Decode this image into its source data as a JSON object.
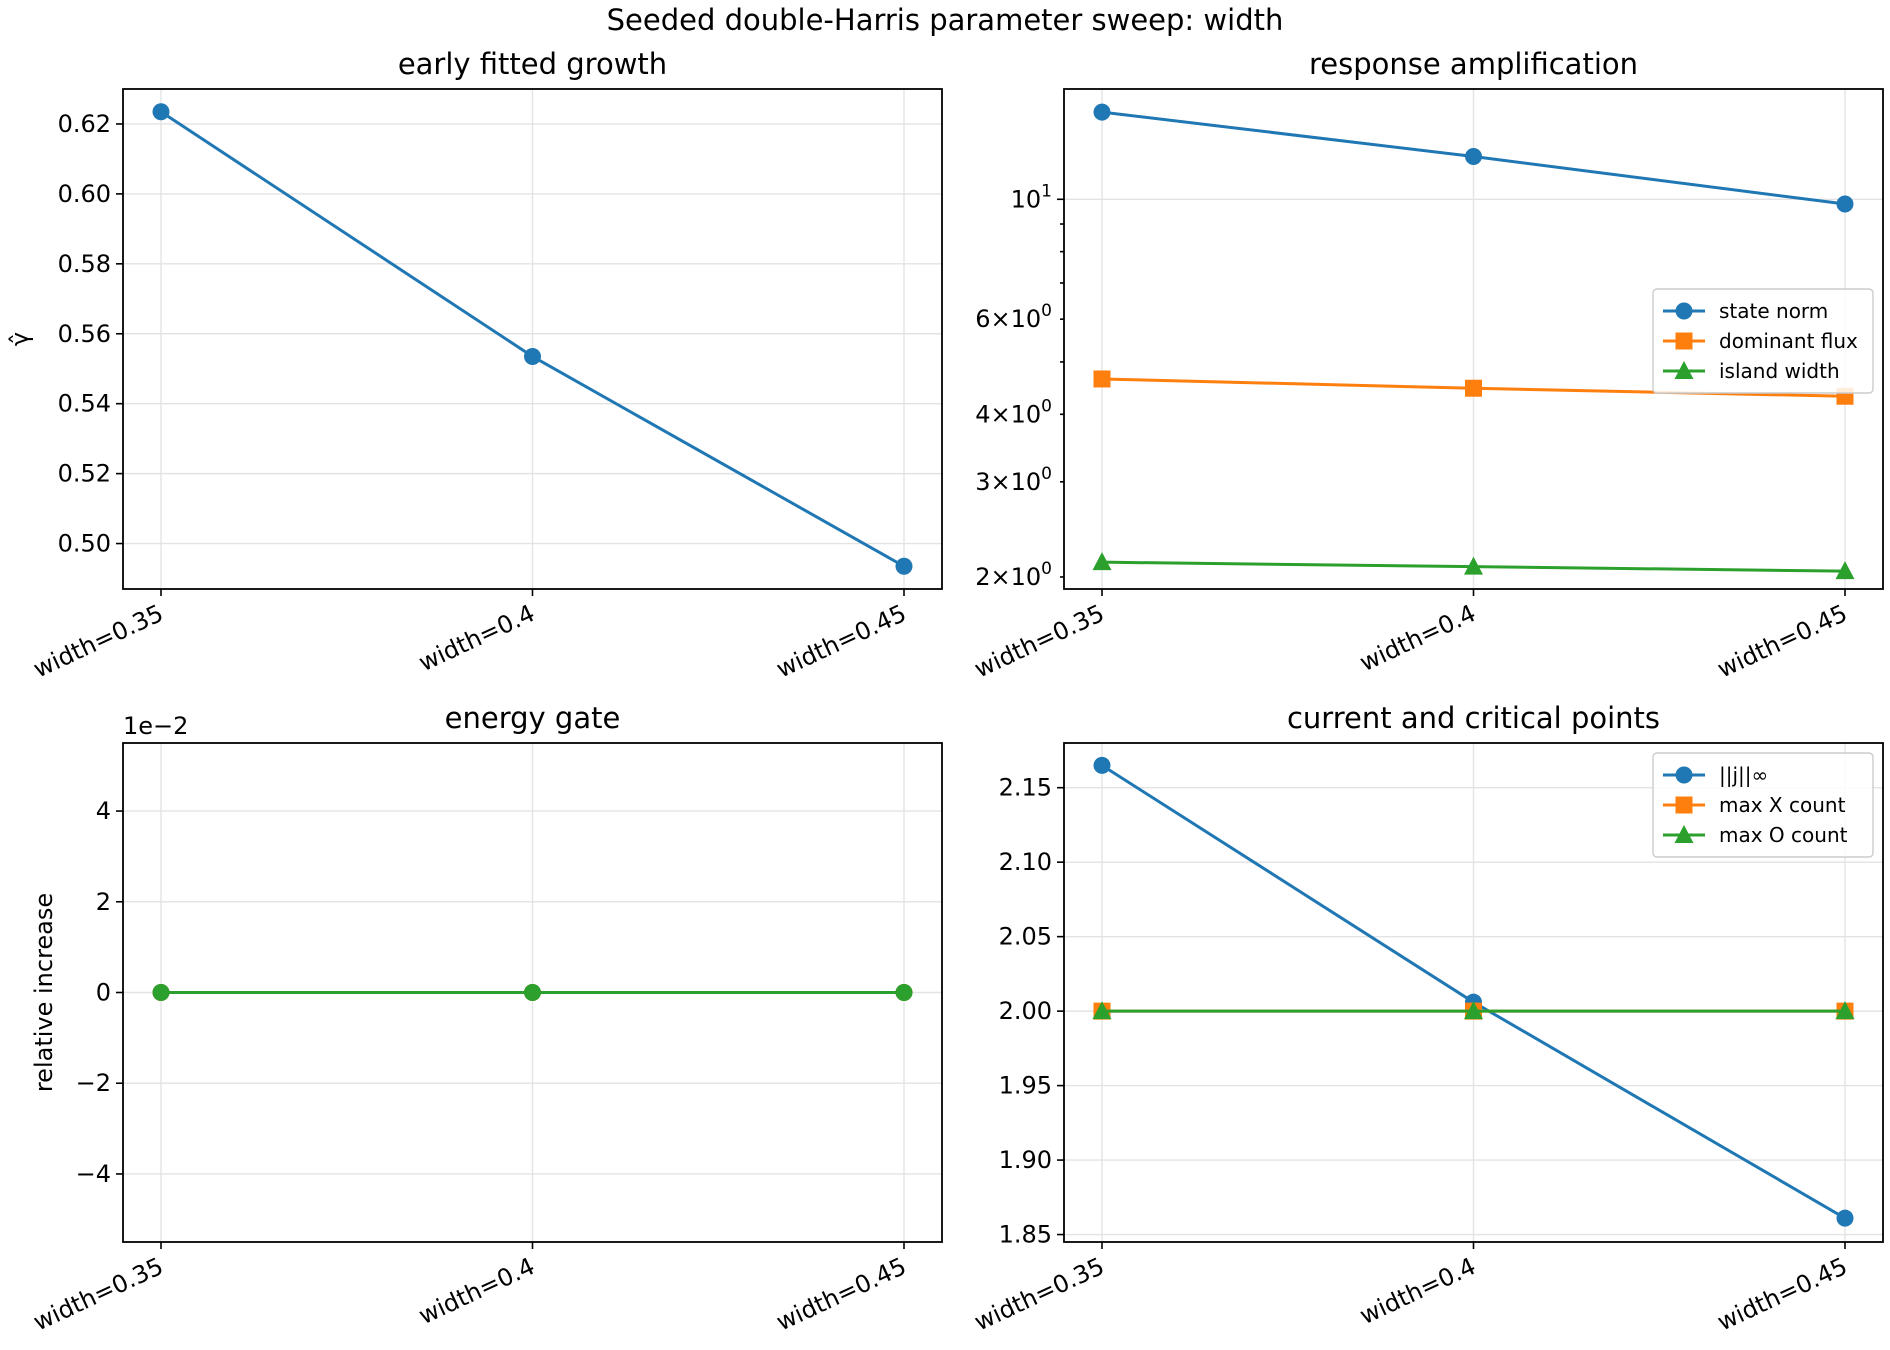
{
  "figure_title": "Seeded double-Harris parameter sweep: width",
  "colors": {
    "blue": "#1f77b4",
    "orange": "#ff7f0e",
    "green": "#2ca02c"
  },
  "chart_data": [
    {
      "id": "growth",
      "type": "line",
      "title": "early fitted growth",
      "ylabel": "γ̂",
      "xlabel": "",
      "categories": [
        "width=0.35",
        "width=0.4",
        "width=0.45"
      ],
      "ylim": [
        0.487,
        0.63
      ],
      "yticks": [
        0.5,
        0.52,
        0.54,
        0.56,
        0.58,
        0.6,
        0.62
      ],
      "ytick_labels": [
        "0.50",
        "0.52",
        "0.54",
        "0.56",
        "0.58",
        "0.60",
        "0.62"
      ],
      "grid": true,
      "series": [
        {
          "name": "",
          "color": "#1f77b4",
          "marker": "circle",
          "values": [
            0.6235,
            0.5535,
            0.4935
          ]
        }
      ]
    },
    {
      "id": "amplification",
      "type": "line",
      "title": "response amplification",
      "xlabel": "",
      "ylabel": "",
      "yscale": "log",
      "categories": [
        "width=0.35",
        "width=0.4",
        "width=0.45"
      ],
      "ylim": [
        1.9,
        16.0
      ],
      "major_ticks": [
        {
          "value": 10,
          "base": "10",
          "exp": "1"
        }
      ],
      "minor_ticks": [
        {
          "value": 2,
          "mant": "2",
          "base": "10",
          "exp": "0"
        },
        {
          "value": 3,
          "mant": "3",
          "base": "10",
          "exp": "0"
        },
        {
          "value": 4,
          "mant": "4",
          "base": "10",
          "exp": "0"
        },
        {
          "value": 6,
          "mant": "6",
          "base": "10",
          "exp": "0"
        }
      ],
      "unlabeled_minor_ticks": [
        5,
        7,
        8,
        9
      ],
      "grid": true,
      "legend": "right",
      "series": [
        {
          "name": "state norm",
          "color": "#1f77b4",
          "marker": "circle",
          "values": [
            14.5,
            12.0,
            9.8
          ]
        },
        {
          "name": "dominant flux",
          "color": "#ff7f0e",
          "marker": "square",
          "values": [
            4.65,
            4.47,
            4.32
          ]
        },
        {
          "name": "island width",
          "color": "#2ca02c",
          "marker": "triangle",
          "values": [
            2.13,
            2.09,
            2.05
          ]
        }
      ]
    },
    {
      "id": "energy",
      "type": "line",
      "title": "energy gate",
      "ylabel": "relative increase",
      "xlabel": "",
      "offset_label": "1e−2",
      "categories": [
        "width=0.35",
        "width=0.4",
        "width=0.45"
      ],
      "ylim": [
        -5.5,
        5.5
      ],
      "yticks": [
        -4,
        -2,
        0,
        2,
        4
      ],
      "ytick_labels": [
        "−4",
        "−2",
        "0",
        "2",
        "4"
      ],
      "grid": true,
      "series": [
        {
          "name": "",
          "color": "#1f77b4",
          "marker": "circle",
          "values": [
            0,
            0,
            0
          ]
        },
        {
          "name": "",
          "color": "#ff7f0e",
          "marker": "circle",
          "values": [
            0,
            0,
            0
          ]
        },
        {
          "name": "",
          "color": "#2ca02c",
          "marker": "circle",
          "values": [
            0,
            0,
            0
          ]
        }
      ]
    },
    {
      "id": "critical",
      "type": "line",
      "title": "current and critical points",
      "xlabel": "",
      "ylabel": "",
      "categories": [
        "width=0.35",
        "width=0.4",
        "width=0.45"
      ],
      "ylim": [
        1.845,
        2.18
      ],
      "yticks": [
        1.85,
        1.9,
        1.95,
        2.0,
        2.05,
        2.1,
        2.15
      ],
      "ytick_labels": [
        "1.85",
        "1.90",
        "1.95",
        "2.00",
        "2.05",
        "2.10",
        "2.15"
      ],
      "grid": true,
      "legend": "top-right",
      "series": [
        {
          "name": "||j||∞",
          "color": "#1f77b4",
          "marker": "circle",
          "values": [
            2.165,
            2.006,
            1.861
          ]
        },
        {
          "name": "max X count",
          "color": "#ff7f0e",
          "marker": "square",
          "values": [
            2,
            2,
            2
          ]
        },
        {
          "name": "max O count",
          "color": "#2ca02c",
          "marker": "triangle",
          "values": [
            2,
            2,
            2
          ]
        }
      ]
    }
  ]
}
